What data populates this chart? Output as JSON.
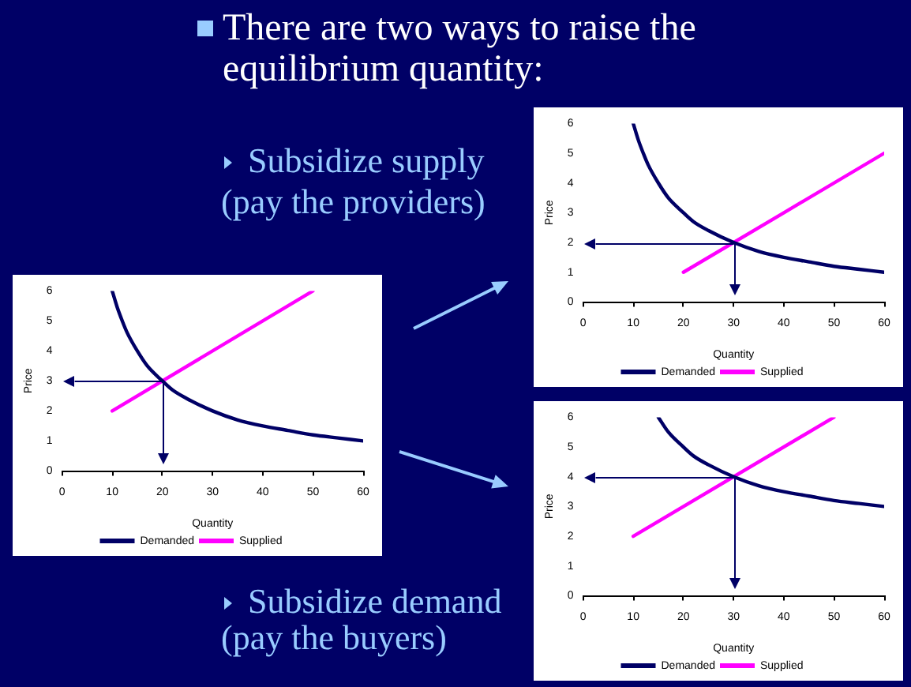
{
  "chart_data": [
    {
      "type": "line",
      "title": "There are two ways to raise the equilibrium quantity:",
      "xlabel": "Quantity",
      "ylabel": "Price",
      "xlim": [
        0,
        60
      ],
      "xticks": [
        0,
        10,
        20,
        30,
        40,
        50,
        60
      ],
      "ylim": [
        0,
        6
      ],
      "yticks": [
        0,
        1,
        2,
        3,
        4,
        5,
        6
      ],
      "legend": "bottom",
      "series": [
        {
          "name": "Demanded",
          "color": "#000066",
          "x": [
            10,
            11,
            12,
            13,
            15,
            17,
            20,
            22,
            25,
            30,
            35,
            40,
            45,
            50,
            55,
            60
          ],
          "values": [
            6,
            5.45,
            5,
            4.6,
            4,
            3.5,
            3,
            2.7,
            2.4,
            2,
            1.7,
            1.5,
            1.35,
            1.2,
            1.1,
            1
          ]
        },
        {
          "name": "Supplied",
          "color": "#ff00ff",
          "x": [
            10,
            50
          ],
          "values": [
            2,
            6
          ]
        }
      ],
      "ref_lines": [
        {
          "axis": "y",
          "value": 3,
          "color": "#000066"
        },
        {
          "axis": "x",
          "value": 20,
          "color": "#000066"
        }
      ]
    },
    {
      "type": "line",
      "annotations": [
        "Subsidize supply (pay the providers)"
      ],
      "xlabel": "Quantity",
      "ylabel": "Price",
      "xlim": [
        0,
        60
      ],
      "xticks": [
        0,
        10,
        20,
        30,
        40,
        50,
        60
      ],
      "ylim": [
        0,
        6
      ],
      "yticks": [
        0,
        1,
        2,
        3,
        4,
        5,
        6
      ],
      "legend": "bottom",
      "series": [
        {
          "name": "Demanded",
          "color": "#000066",
          "x": [
            10,
            11,
            12,
            13,
            15,
            17,
            20,
            22,
            25,
            30,
            35,
            40,
            45,
            50,
            55,
            60
          ],
          "values": [
            6,
            5.45,
            5,
            4.6,
            4,
            3.5,
            3,
            2.7,
            2.4,
            2,
            1.7,
            1.5,
            1.35,
            1.2,
            1.1,
            1
          ]
        },
        {
          "name": "Supplied",
          "color": "#ff00ff",
          "x": [
            20,
            60
          ],
          "values": [
            1,
            5
          ]
        }
      ],
      "ref_lines": [
        {
          "axis": "y",
          "value": 2,
          "color": "#000066"
        },
        {
          "axis": "x",
          "value": 30,
          "color": "#000066"
        }
      ]
    },
    {
      "type": "line",
      "annotations": [
        "Subsidize demand (pay the buyers)"
      ],
      "xlabel": "Quantity",
      "ylabel": "Price",
      "xlim": [
        0,
        60
      ],
      "xticks": [
        0,
        10,
        20,
        30,
        40,
        50,
        60
      ],
      "ylim": [
        0,
        6
      ],
      "yticks": [
        0,
        1,
        2,
        3,
        4,
        5,
        6
      ],
      "legend": "bottom",
      "series": [
        {
          "name": "Demanded",
          "color": "#000066",
          "x": [
            15,
            17,
            20,
            22,
            25,
            30,
            35,
            40,
            45,
            50,
            55,
            60
          ],
          "values": [
            6,
            5.5,
            5,
            4.7,
            4.4,
            4,
            3.7,
            3.5,
            3.35,
            3.2,
            3.1,
            3
          ]
        },
        {
          "name": "Supplied",
          "color": "#ff00ff",
          "x": [
            10,
            50
          ],
          "values": [
            2,
            6
          ]
        }
      ],
      "ref_lines": [
        {
          "axis": "y",
          "value": 4,
          "color": "#000066"
        },
        {
          "axis": "x",
          "value": 30,
          "color": "#000066"
        }
      ]
    }
  ]
}
